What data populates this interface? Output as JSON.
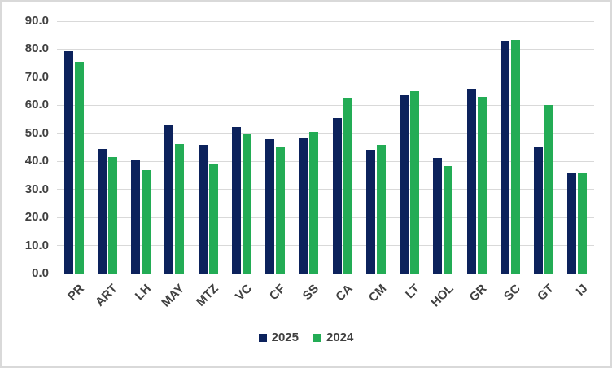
{
  "chart_data": {
    "type": "bar",
    "title": "",
    "xlabel": "",
    "ylabel": "",
    "categories": [
      "PR",
      "ART",
      "LH",
      "MAY",
      "MTZ",
      "VC",
      "CF",
      "SS",
      "CA",
      "CM",
      "LT",
      "HOL",
      "GR",
      "SC",
      "GT",
      "IJ"
    ],
    "series": [
      {
        "name": "2025",
        "color": "#0c225c",
        "values": [
          79.3,
          44.3,
          40.6,
          52.9,
          45.8,
          52.3,
          48.0,
          48.6,
          55.5,
          44.0,
          63.6,
          41.3,
          65.9,
          82.9,
          45.2,
          35.8
        ]
      },
      {
        "name": "2024",
        "color": "#23ac55",
        "values": [
          75.6,
          41.4,
          37.0,
          46.3,
          38.9,
          49.9,
          45.4,
          50.4,
          62.8,
          45.9,
          65.1,
          38.2,
          63.1,
          83.2,
          60.0,
          35.6
        ]
      }
    ],
    "ylim": [
      0,
      90
    ],
    "ytick_step": 10,
    "ytick_labels": [
      "0.0",
      "10.0",
      "20.0",
      "30.0",
      "40.0",
      "50.0",
      "60.0",
      "70.0",
      "80.0",
      "90.0"
    ],
    "grid": "horizontal",
    "legend_position": "bottom-center",
    "colors": {
      "grid": "#d9d9d9",
      "axis_text": "#404040",
      "border": "#d9d9d9",
      "background": "#ffffff"
    }
  }
}
